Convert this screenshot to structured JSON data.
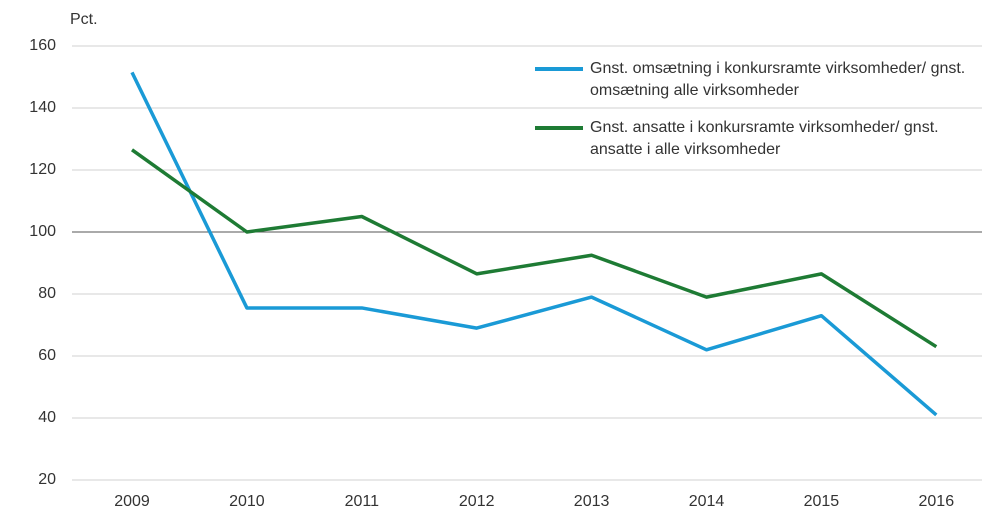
{
  "chart_data": {
    "type": "line",
    "y_axis_label": "Pct.",
    "categories": [
      "2009",
      "2010",
      "2011",
      "2012",
      "2013",
      "2014",
      "2015",
      "2016"
    ],
    "series": [
      {
        "name": "Gnst. omsætning i konkursramte virksomheder/ gnst. omsætning alle virksomheder",
        "color": "#1a9ad6",
        "values": [
          151.5,
          75.5,
          75.5,
          69,
          79,
          62,
          73,
          41
        ]
      },
      {
        "name": "Gnst. ansatte i konkursramte virksomheder/ gnst. ansatte i alle virksomheder",
        "color": "#1e7b34",
        "values": [
          126.5,
          100,
          105,
          86.5,
          92.5,
          79,
          86.5,
          63
        ]
      }
    ],
    "ylim": [
      20,
      160
    ],
    "yticks": [
      20,
      40,
      60,
      80,
      100,
      120,
      140,
      160
    ],
    "grid": true,
    "reference_line": 100,
    "legend": "top-right"
  }
}
